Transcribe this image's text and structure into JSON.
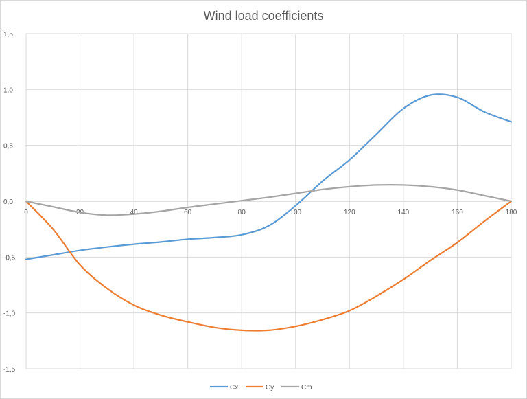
{
  "chart_data": {
    "type": "line",
    "title": "Wind load coefficients",
    "xlabel": "",
    "ylabel": "",
    "xlim": [
      0,
      180
    ],
    "ylim": [
      -1.5,
      1.5
    ],
    "x_ticks": [
      0,
      20,
      40,
      60,
      80,
      100,
      120,
      140,
      160,
      180
    ],
    "y_ticks": [
      -1.5,
      -1.0,
      -0.5,
      0.0,
      0.5,
      1.0,
      1.5
    ],
    "x_tick_labels": [
      "0",
      "20",
      "40",
      "60",
      "80",
      "100",
      "120",
      "140",
      "160",
      "180"
    ],
    "y_tick_labels": [
      "-1,5",
      "-1,0",
      "-0,5",
      "0,0",
      "0,5",
      "1,0",
      "1,5"
    ],
    "grid": true,
    "legend_position": "bottom",
    "x": [
      0,
      10,
      20,
      30,
      40,
      50,
      60,
      70,
      80,
      90,
      100,
      110,
      120,
      130,
      140,
      150,
      160,
      170,
      180
    ],
    "series": [
      {
        "name": "Cx",
        "color": "#5b9bd5",
        "values": [
          -0.52,
          -0.48,
          -0.44,
          -0.41,
          -0.385,
          -0.365,
          -0.34,
          -0.325,
          -0.3,
          -0.22,
          -0.04,
          0.18,
          0.37,
          0.6,
          0.83,
          0.95,
          0.93,
          0.8,
          0.71
        ]
      },
      {
        "name": "Cy",
        "color": "#ed7d31",
        "values": [
          0.0,
          -0.25,
          -0.57,
          -0.78,
          -0.93,
          -1.02,
          -1.08,
          -1.13,
          -1.155,
          -1.155,
          -1.12,
          -1.06,
          -0.98,
          -0.85,
          -0.7,
          -0.53,
          -0.37,
          -0.18,
          0.0
        ]
      },
      {
        "name": "Cm",
        "color": "#a5a5a5",
        "values": [
          0.0,
          -0.05,
          -0.1,
          -0.125,
          -0.115,
          -0.09,
          -0.055,
          -0.025,
          0.005,
          0.035,
          0.07,
          0.105,
          0.13,
          0.145,
          0.145,
          0.13,
          0.1,
          0.05,
          0.0
        ]
      }
    ]
  }
}
